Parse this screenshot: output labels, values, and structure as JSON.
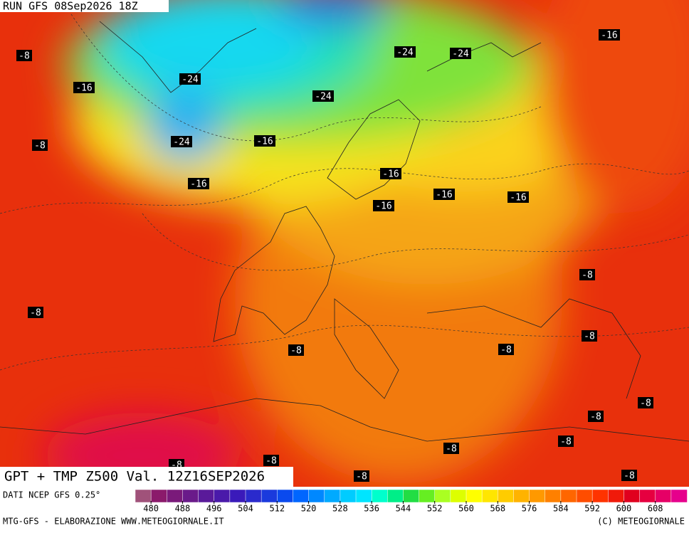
{
  "header": {
    "run": "RUN GFS 08Sep2026 18Z"
  },
  "map": {
    "contour_labels": [
      "-8",
      "-16",
      "-8",
      "-24",
      "-24",
      "-16",
      "-16",
      "-24",
      "-24",
      "-24",
      "-16",
      "-16",
      "-16",
      "-16",
      "-16",
      "-8",
      "-8",
      "-8",
      "-8",
      "-8",
      "-8",
      "-8",
      "-8",
      "-8",
      "-8",
      "-8",
      "-8",
      "-8"
    ]
  },
  "footer": {
    "title": "GPT + TMP Z500 Val. 12Z16SEP2026",
    "source": "DATI NCEP GFS 0.25°",
    "credits": "MTG-GFS - ELABORAZIONE WWW.METEOGIORNALE.IT",
    "copyright": "(C) METEOGIORNALE"
  },
  "legend": {
    "ticks": [
      480,
      488,
      496,
      504,
      512,
      520,
      528,
      536,
      544,
      552,
      560,
      568,
      576,
      584,
      592,
      600,
      608
    ],
    "colors": [
      "#a0527a",
      "#8b1a6b",
      "#7a1a7a",
      "#6a1a8a",
      "#5a1a9a",
      "#4a1aaa",
      "#3a1aba",
      "#2a2acc",
      "#1a3add",
      "#0a4aee",
      "#0066ff",
      "#0088ff",
      "#00aaff",
      "#00ccff",
      "#00e5ff",
      "#00ffcc",
      "#00ee88",
      "#22dd44",
      "#66ee22",
      "#aaff22",
      "#ddff00",
      "#ffff00",
      "#ffe600",
      "#ffcc00",
      "#ffb300",
      "#ff9900",
      "#ff8000",
      "#ff6600",
      "#ff4d00",
      "#ff3300",
      "#f01a0a",
      "#e0001e",
      "#e60040",
      "#e60066",
      "#e6008c"
    ]
  }
}
